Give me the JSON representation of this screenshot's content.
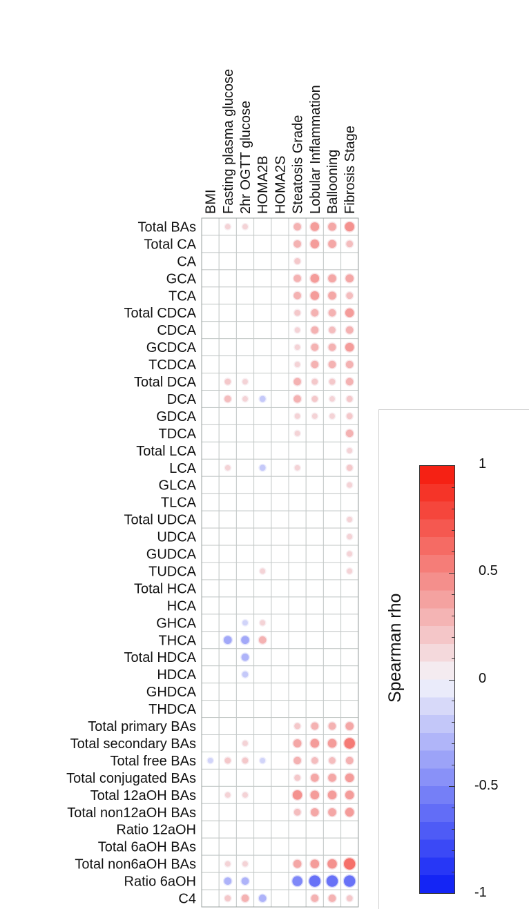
{
  "chart_data": {
    "type": "heatmap",
    "columns": [
      "BMI",
      "Fasting plasma glucose",
      "2hr OGTT glucose",
      "HOMA2B",
      "HOMA2S",
      "Steatosis Grade",
      "Lobular Inflammation",
      "Ballooning",
      "Fibrosis Stage"
    ],
    "rows": [
      "Total BAs",
      "Total CA",
      "CA",
      "GCA",
      "TCA",
      "Total CDCA",
      "CDCA",
      "GCDCA",
      "TCDCA",
      "Total DCA",
      "DCA",
      "GDCA",
      "TDCA",
      "Total LCA",
      "LCA",
      "GLCA",
      "TLCA",
      "Total UDCA",
      "UDCA",
      "GUDCA",
      "TUDCA",
      "Total HCA",
      "HCA",
      "GHCA",
      "THCA",
      "Total HDCA",
      "HDCA",
      "GHDCA",
      "THDCA",
      "Total primary BAs",
      "Total secondary BAs",
      "Total free BAs",
      "Total conjugated BAs",
      "Total 12aOH BAs",
      "Total non12aOH BAs",
      "Ratio 12aOH",
      "Total 6aOH BAs",
      "Total non6aOH BAs",
      "Ratio 6aOH",
      "C4"
    ],
    "values": [
      [
        0,
        0.15,
        0.15,
        0,
        0,
        0.3,
        0.4,
        0.35,
        0.45
      ],
      [
        0,
        0,
        0,
        0,
        0,
        0.3,
        0.4,
        0.35,
        0.25
      ],
      [
        0,
        0,
        0,
        0,
        0,
        0.2,
        0,
        0,
        0
      ],
      [
        0,
        0,
        0,
        0,
        0,
        0.3,
        0.4,
        0.35,
        0.35
      ],
      [
        0,
        0,
        0,
        0,
        0,
        0.3,
        0.4,
        0.35,
        0.25
      ],
      [
        0,
        0,
        0,
        0,
        0,
        0.2,
        0.3,
        0.3,
        0.4
      ],
      [
        0,
        0,
        0,
        0,
        0,
        0.15,
        0.3,
        0.25,
        0.3
      ],
      [
        0,
        0,
        0,
        0,
        0,
        0.15,
        0.3,
        0.3,
        0.4
      ],
      [
        0,
        0,
        0,
        0,
        0,
        0.15,
        0.3,
        0.3,
        0.3
      ],
      [
        0,
        0.2,
        0.15,
        0,
        0,
        0.3,
        0.2,
        0.2,
        0.3
      ],
      [
        0,
        0.25,
        0.15,
        -0.2,
        0,
        0.3,
        0.2,
        0.15,
        0.2
      ],
      [
        0,
        0,
        0,
        0,
        0,
        0.15,
        0.15,
        0.15,
        0.2
      ],
      [
        0,
        0,
        0,
        0,
        0,
        0.15,
        0,
        0,
        0.3
      ],
      [
        0,
        0,
        0,
        0,
        0,
        0,
        0,
        0,
        0.15
      ],
      [
        0,
        0.15,
        0,
        -0.2,
        0,
        0.15,
        0,
        0,
        0.2
      ],
      [
        0,
        0,
        0,
        0,
        0,
        0,
        0,
        0,
        0.15
      ],
      [
        0,
        0,
        0,
        0,
        0,
        0,
        0,
        0,
        0
      ],
      [
        0,
        0,
        0,
        0,
        0,
        0,
        0,
        0,
        0.15
      ],
      [
        0,
        0,
        0,
        0,
        0,
        0,
        0,
        0,
        0.15
      ],
      [
        0,
        0,
        0,
        0,
        0,
        0,
        0,
        0,
        0.15
      ],
      [
        0,
        0,
        0,
        0.15,
        0,
        0,
        0,
        0,
        0.15
      ],
      [
        0,
        0,
        0,
        0,
        0,
        0,
        0,
        0,
        0
      ],
      [
        0,
        0,
        0,
        0,
        0,
        0,
        0,
        0,
        0
      ],
      [
        0,
        0,
        -0.15,
        0.15,
        0,
        0,
        0,
        0,
        0
      ],
      [
        0,
        -0.35,
        -0.35,
        0.3,
        0,
        0,
        0,
        0,
        0
      ],
      [
        0,
        0,
        -0.3,
        0,
        0,
        0,
        0,
        0,
        0
      ],
      [
        0,
        0,
        -0.2,
        0,
        0,
        0,
        0,
        0,
        0
      ],
      [
        0,
        0,
        0,
        0,
        0,
        0,
        0,
        0,
        0
      ],
      [
        0,
        0,
        0,
        0,
        0,
        0,
        0,
        0,
        0
      ],
      [
        0,
        0,
        0,
        0,
        0,
        0.2,
        0.3,
        0.3,
        0.35
      ],
      [
        0,
        0,
        0.15,
        0,
        0,
        0.35,
        0.4,
        0.4,
        0.55
      ],
      [
        -0.15,
        0.2,
        0.2,
        -0.15,
        0,
        0.3,
        0.25,
        0.25,
        0.3
      ],
      [
        0,
        0,
        0,
        0,
        0,
        0.2,
        0.35,
        0.35,
        0.4
      ],
      [
        0,
        0.15,
        0.15,
        0,
        0,
        0.45,
        0.4,
        0.4,
        0.4
      ],
      [
        0,
        0,
        0,
        0,
        0,
        0.25,
        0.35,
        0.35,
        0.4
      ],
      [
        0,
        0,
        0,
        0,
        0,
        0,
        0,
        0,
        0
      ],
      [
        0,
        0,
        0,
        0,
        0,
        0,
        0,
        0,
        0
      ],
      [
        0,
        0.15,
        0.15,
        0,
        0,
        0.35,
        0.4,
        0.45,
        0.6
      ],
      [
        0,
        -0.3,
        -0.3,
        0,
        0,
        -0.5,
        -0.6,
        -0.6,
        -0.6
      ],
      [
        0,
        0.2,
        0.3,
        -0.3,
        0,
        0,
        0.3,
        0.3,
        0.2
      ]
    ],
    "colorbar": {
      "label": "Spearman rho",
      "range": [
        -1,
        1
      ],
      "ticks": [
        1,
        0.5,
        0,
        -0.5,
        -1
      ],
      "tick_labels": [
        "1",
        "0.5",
        "0",
        "-0.5",
        "-1"
      ],
      "low_color": "#0a1cf5",
      "mid_color": "#f4f4fa",
      "high_color": "#f5180a"
    },
    "grid": true,
    "legend_placement": "right"
  }
}
